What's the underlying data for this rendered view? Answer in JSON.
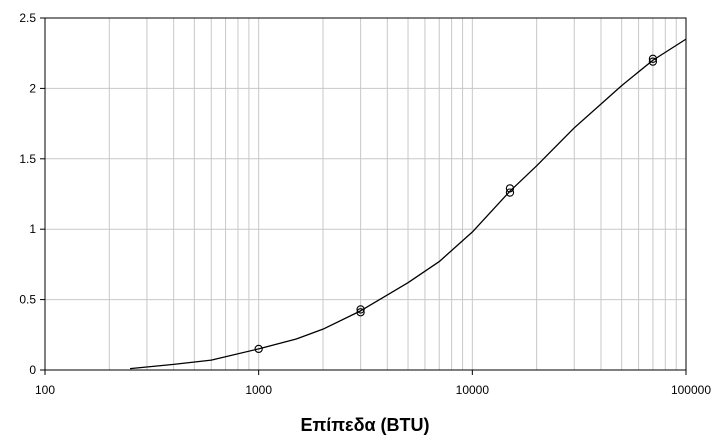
{
  "chart_data": {
    "type": "scatter",
    "title": "",
    "xlabel": "Επίπεδα (BTU)",
    "ylabel": "",
    "x_scale": "log",
    "xlim": [
      100,
      100000
    ],
    "ylim": [
      0,
      2.5
    ],
    "x_ticks": [
      "100",
      "1000",
      "10000",
      "100000"
    ],
    "y_ticks": [
      "0",
      "0.5",
      "1",
      "1.5",
      "2",
      "2.5"
    ],
    "grid": true,
    "legend": "none",
    "series": [
      {
        "type": "scatter",
        "marker": "open-circle",
        "points": [
          {
            "x": 1000,
            "y": 0.15
          },
          {
            "x": 3000,
            "y": 0.41
          },
          {
            "x": 3000,
            "y": 0.43
          },
          {
            "x": 15000,
            "y": 1.26
          },
          {
            "x": 15000,
            "y": 1.29
          },
          {
            "x": 70000,
            "y": 2.19
          },
          {
            "x": 70000,
            "y": 2.21
          }
        ]
      },
      {
        "type": "line",
        "points": [
          {
            "x": 250,
            "y": 0.01
          },
          {
            "x": 400,
            "y": 0.04
          },
          {
            "x": 600,
            "y": 0.07
          },
          {
            "x": 1000,
            "y": 0.15
          },
          {
            "x": 1500,
            "y": 0.22
          },
          {
            "x": 2000,
            "y": 0.29
          },
          {
            "x": 3000,
            "y": 0.42
          },
          {
            "x": 5000,
            "y": 0.62
          },
          {
            "x": 7000,
            "y": 0.77
          },
          {
            "x": 10000,
            "y": 0.98
          },
          {
            "x": 15000,
            "y": 1.27
          },
          {
            "x": 20000,
            "y": 1.45
          },
          {
            "x": 30000,
            "y": 1.72
          },
          {
            "x": 50000,
            "y": 2.02
          },
          {
            "x": 70000,
            "y": 2.2
          },
          {
            "x": 100000,
            "y": 2.35
          }
        ]
      }
    ],
    "colors": {
      "axis": "#000000",
      "grid": "#c8c8c8",
      "line": "#000000",
      "marker": "#000000",
      "background": "#ffffff"
    }
  }
}
